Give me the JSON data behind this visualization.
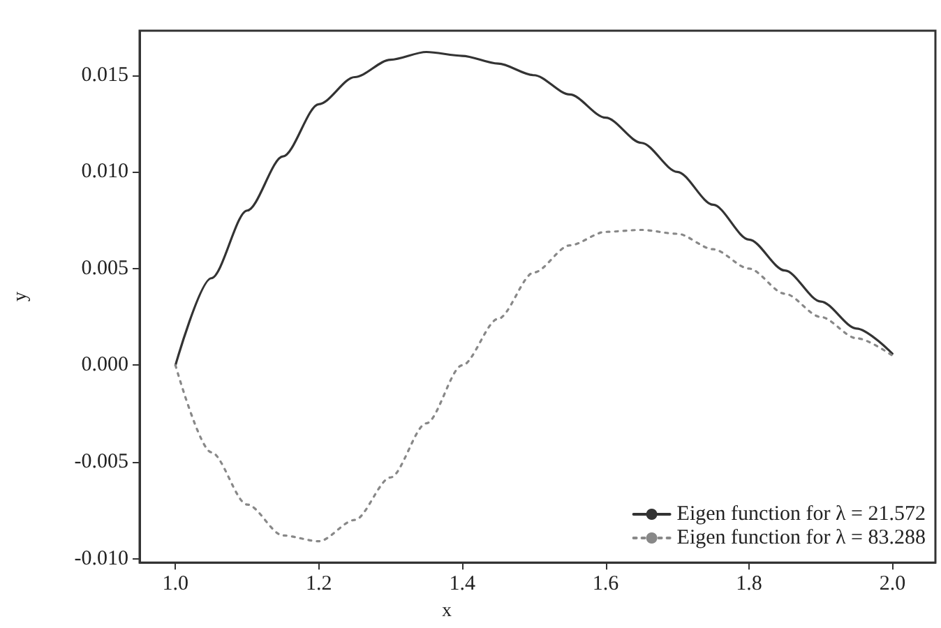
{
  "chart_data": {
    "type": "line",
    "xlabel": "x",
    "ylabel": "y",
    "xlim": [
      0.95,
      2.06
    ],
    "xticks": [
      {
        "value": 1.0,
        "label": "1.0"
      },
      {
        "value": 1.2,
        "label": "1.2"
      },
      {
        "value": 1.4,
        "label": "1.4"
      },
      {
        "value": 1.6,
        "label": "1.6"
      },
      {
        "value": 1.8,
        "label": "1.8"
      },
      {
        "value": 2.0,
        "label": "2.0"
      }
    ],
    "ylim": [
      -0.0102,
      0.0173
    ],
    "yticks": [
      {
        "value": -0.01,
        "label": "-0.010"
      },
      {
        "value": -0.005,
        "label": "-0.005"
      },
      {
        "value": 0,
        "label": "0.000"
      },
      {
        "value": 0.005,
        "label": "0.005"
      },
      {
        "value": 0.01,
        "label": "0.010"
      },
      {
        "value": 0.015,
        "label": "0.015"
      }
    ],
    "x": [
      1.0,
      1.05,
      1.1,
      1.15,
      1.2,
      1.25,
      1.3,
      1.35,
      1.4,
      1.45,
      1.5,
      1.55,
      1.6,
      1.65,
      1.7,
      1.75,
      1.8,
      1.85,
      1.9,
      1.95,
      2.0
    ],
    "grid": false,
    "legend": "bottom right",
    "marker": "none",
    "series": [
      {
        "name": "Eigen function for λ = 21.572",
        "color": "#333333",
        "line_style": "solid",
        "values": [
          0,
          0.0045,
          0.008,
          0.0108,
          0.0135,
          0.0149,
          0.0158,
          0.0162,
          0.016,
          0.0156,
          0.015,
          0.014,
          0.0128,
          0.0115,
          0.01,
          0.0083,
          0.0065,
          0.0049,
          0.0033,
          0.0019,
          0.0006
        ]
      },
      {
        "name": "Eigen function for λ = 83.288",
        "color": "#888888",
        "line_style": "dotted",
        "values": [
          0,
          -0.0045,
          -0.0072,
          -0.0088,
          -0.0091,
          -0.008,
          -0.0058,
          -0.003,
          0,
          0.0024,
          0.0048,
          0.0062,
          0.0069,
          0.007,
          0.0068,
          0.006,
          0.005,
          0.0037,
          0.0025,
          0.0014,
          0.0005
        ]
      }
    ]
  }
}
